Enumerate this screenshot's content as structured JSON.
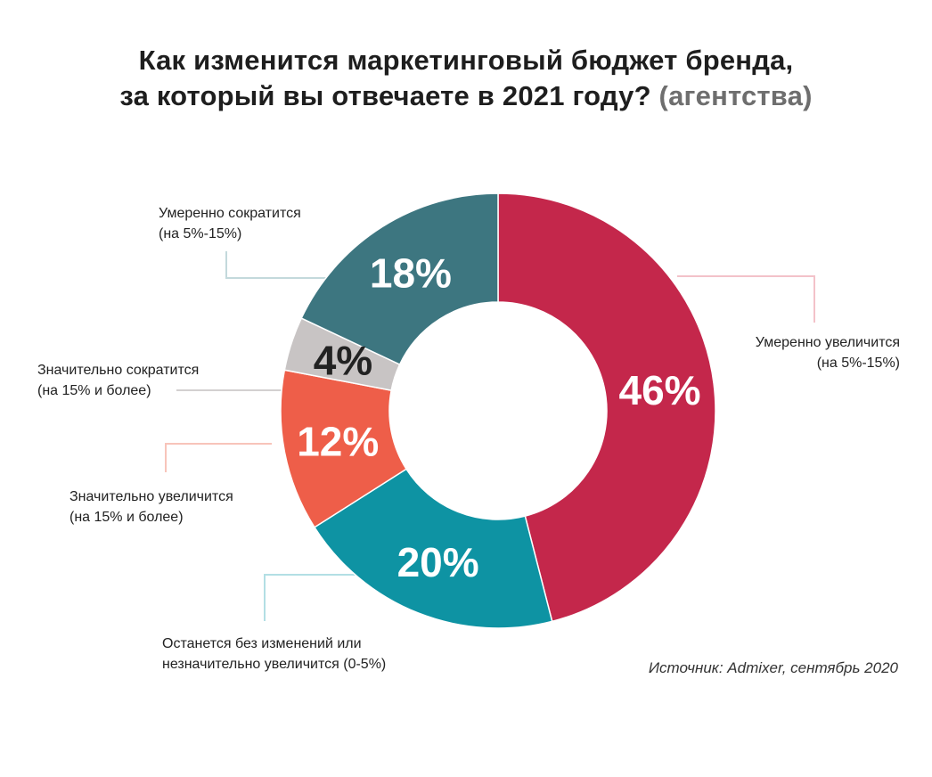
{
  "title": {
    "line1": "Как изменится маркетинговый бюджет бренда,",
    "line2": "за который вы отвечаете в 2021 году?",
    "suffix": "(агентства)"
  },
  "source": "Источник: Admixer, сентябрь 2020",
  "chart_data": {
    "type": "pie",
    "donut": true,
    "title": "Как изменится маркетинговый бюджет бренда, за который вы отвечаете в 2021 году? (агентства)",
    "slices": [
      {
        "label_line1": "Умеренно увеличится",
        "label_line2": "(на 5%-15%)",
        "value": 46,
        "display": "46%",
        "color": "#c4274b"
      },
      {
        "label_line1": "Останется без изменений или",
        "label_line2": "незначительно увеличится (0-5%)",
        "value": 20,
        "display": "20%",
        "color": "#0e93a3"
      },
      {
        "label_line1": "Значительно увеличится",
        "label_line2": "(на 15% и более)",
        "value": 12,
        "display": "12%",
        "color": "#ee5e49"
      },
      {
        "label_line1": "Значительно сократится",
        "label_line2": "(на 15% и более)",
        "value": 4,
        "display": "4%",
        "color": "#c8c4c4"
      },
      {
        "label_line1": "Умеренно сократится",
        "label_line2": "(на 5%-15%)",
        "value": 18,
        "display": "18%",
        "color": "#3d7680"
      }
    ]
  }
}
